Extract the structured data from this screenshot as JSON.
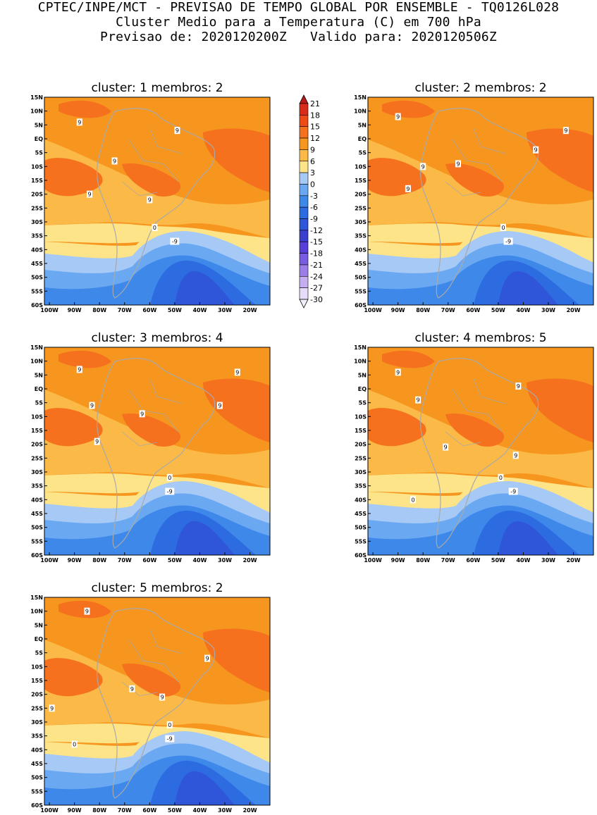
{
  "header": {
    "line1": "CPTEC/INPE/MCT - PREVISAO DE TEMPO GLOBAL POR ENSEMBLE - TQ0126L028",
    "line2": "Cluster Medio para a Temperatura (C) em 700 hPa",
    "line3": "Previsao de: 2020120200Z   Valido para: 2020120506Z"
  },
  "lat_ticks": [
    "15N",
    "10N",
    "5N",
    "EQ",
    "5S",
    "10S",
    "15S",
    "20S",
    "25S",
    "30S",
    "35S",
    "40S",
    "45S",
    "50S",
    "55S",
    "60S"
  ],
  "lon_ticks": [
    "100W",
    "90W",
    "80W",
    "70W",
    "60W",
    "50W",
    "40W",
    "30W",
    "20W"
  ],
  "colorbar": {
    "labels": [
      "21",
      "18",
      "15",
      "12",
      "9",
      "6",
      "3",
      "0",
      "-3",
      "-6",
      "-9",
      "-12",
      "-15",
      "-18",
      "-21",
      "-24",
      "-27",
      "-30"
    ],
    "colors": [
      "#b81a1a",
      "#d92b1a",
      "#ee4a18",
      "#f5711e",
      "#f7961e",
      "#fbb947",
      "#fee488",
      "#a6c9f5",
      "#6aa9f2",
      "#3e88ea",
      "#2d6be0",
      "#2f55d8",
      "#3b3fcf",
      "#5a3ed8",
      "#7a5ce2",
      "#9a7fe8",
      "#c4aef0",
      "#e4dcf8"
    ]
  },
  "clusters": [
    {
      "title": "cluster: 1  membros: 2",
      "labels": [
        {
          "text": "9",
          "lon": -88,
          "lat": 6
        },
        {
          "text": "9",
          "lon": -49,
          "lat": 3
        },
        {
          "text": "9",
          "lon": -74,
          "lat": -8
        },
        {
          "text": "9",
          "lon": -84,
          "lat": -20
        },
        {
          "text": "9",
          "lon": -60,
          "lat": -22
        },
        {
          "text": "0",
          "lon": -58,
          "lat": -32
        },
        {
          "text": "-9",
          "lon": -50,
          "lat": -37
        }
      ]
    },
    {
      "title": "cluster: 2  membros: 2",
      "labels": [
        {
          "text": "9",
          "lon": -90,
          "lat": 8
        },
        {
          "text": "9",
          "lon": -23,
          "lat": 3
        },
        {
          "text": "9",
          "lon": -35,
          "lat": -4
        },
        {
          "text": "9",
          "lon": -80,
          "lat": -10
        },
        {
          "text": "9",
          "lon": -66,
          "lat": -9
        },
        {
          "text": "9",
          "lon": -86,
          "lat": -18
        },
        {
          "text": "0",
          "lon": -48,
          "lat": -32
        },
        {
          "text": "-9",
          "lon": -46,
          "lat": -37
        }
      ]
    },
    {
      "title": "cluster: 3  membros: 4",
      "labels": [
        {
          "text": "9",
          "lon": -88,
          "lat": 7
        },
        {
          "text": "9",
          "lon": -25,
          "lat": 6
        },
        {
          "text": "9",
          "lon": -83,
          "lat": -6
        },
        {
          "text": "9",
          "lon": -32,
          "lat": -6
        },
        {
          "text": "9",
          "lon": -63,
          "lat": -9
        },
        {
          "text": "9",
          "lon": -81,
          "lat": -19
        },
        {
          "text": "0",
          "lon": -52,
          "lat": -32
        },
        {
          "text": "-9",
          "lon": -52,
          "lat": -37
        }
      ]
    },
    {
      "title": "cluster: 4  membros: 5",
      "labels": [
        {
          "text": "9",
          "lon": -90,
          "lat": 6
        },
        {
          "text": "9",
          "lon": -42,
          "lat": 1
        },
        {
          "text": "9",
          "lon": -82,
          "lat": -4
        },
        {
          "text": "9",
          "lon": -71,
          "lat": -21
        },
        {
          "text": "9",
          "lon": -43,
          "lat": -24
        },
        {
          "text": "0",
          "lon": -49,
          "lat": -32
        },
        {
          "text": "0",
          "lon": -84,
          "lat": -40
        },
        {
          "text": "-9",
          "lon": -44,
          "lat": -37
        }
      ]
    },
    {
      "title": "cluster: 5  membros: 2",
      "labels": [
        {
          "text": "9",
          "lon": -85,
          "lat": 10
        },
        {
          "text": "9",
          "lon": -37,
          "lat": -7
        },
        {
          "text": "9",
          "lon": -67,
          "lat": -18
        },
        {
          "text": "9",
          "lon": -55,
          "lat": -21
        },
        {
          "text": "9",
          "lon": -99,
          "lat": -25
        },
        {
          "text": "0",
          "lon": -90,
          "lat": -38
        },
        {
          "text": "0",
          "lon": -52,
          "lat": -31
        },
        {
          "text": "-9",
          "lon": -52,
          "lat": -36
        }
      ]
    }
  ]
}
